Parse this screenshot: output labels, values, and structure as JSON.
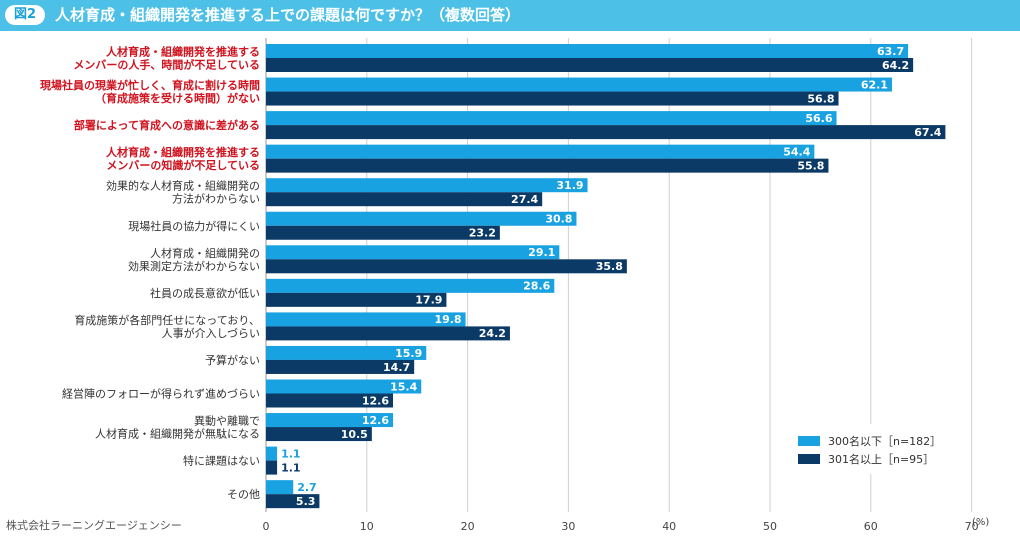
{
  "header": {
    "figure_label": "図2",
    "title": "人材育成・組織開発を推進する上での課題は何ですか？（複数回答）"
  },
  "credit": "株式会社ラーニングエージェンシー",
  "colors": {
    "header_bg": "#4dc0e7",
    "series_small": "#19a2e1",
    "series_large": "#0b3a66",
    "highlight_text": "#d0131f",
    "normal_text": "#333333",
    "grid": "#cfcfcf"
  },
  "chart_data": {
    "type": "bar",
    "orientation": "horizontal",
    "title": "人材育成・組織開発を推進する上での課題は何ですか？（複数回答）",
    "xlabel": "(%)",
    "xlim": [
      0,
      70
    ],
    "xticks": [
      "0",
      "10",
      "20",
      "30",
      "40",
      "50",
      "60",
      "70"
    ],
    "grid": true,
    "legend_position": "bottom-right",
    "categories": [
      "人材育成・組織開発を推進する\nメンバーの人手、時間が不足している",
      "現場社員の現業が忙しく、育成に割ける時間\n（育成施策を受ける時間）がない",
      "部署によって育成への意識に差がある",
      "人材育成・組織開発を推進する\nメンバーの知識が不足している",
      "効果的な人材育成・組織開発の\n方法がわからない",
      "現場社員の協力が得にくい",
      "人材育成・組織開発の\n効果測定方法がわからない",
      "社員の成長意欲が低い",
      "育成施策が各部門任せになっており、\n人事が介入しづらい",
      "予算がない",
      "経営陣のフォローが得られず進めづらい",
      "異動や離職で\n人材育成・組織開発が無駄になる",
      "特に課題はない",
      "その他"
    ],
    "highlighted": [
      true,
      true,
      true,
      true,
      false,
      false,
      false,
      false,
      false,
      false,
      false,
      false,
      false,
      false
    ],
    "series": [
      {
        "name": "300名以下［n=182］",
        "color": "#19a2e1",
        "values": [
          63.7,
          62.1,
          56.6,
          54.4,
          31.9,
          30.8,
          29.1,
          28.6,
          19.8,
          15.9,
          15.4,
          12.6,
          1.1,
          2.7
        ],
        "labels": [
          "63.7",
          "62.1",
          "56.6",
          "54.4",
          "31.9",
          "30.8",
          "29.1",
          "28.6",
          "19.8",
          "15.9",
          "15.4",
          "12.6",
          "1.1",
          "2.7"
        ]
      },
      {
        "name": "301名以上［n=95］",
        "color": "#0b3a66",
        "values": [
          64.2,
          56.8,
          67.4,
          55.8,
          27.4,
          23.2,
          35.8,
          17.9,
          24.2,
          14.7,
          12.6,
          10.5,
          1.1,
          5.3
        ],
        "labels": [
          "64.2",
          "56.8",
          "67.4",
          "55.8",
          "27.4",
          "23.2",
          "35.8",
          "17.9",
          "24.2",
          "14.7",
          "12.6",
          "10.5",
          "1.1",
          "5.3"
        ]
      }
    ]
  }
}
